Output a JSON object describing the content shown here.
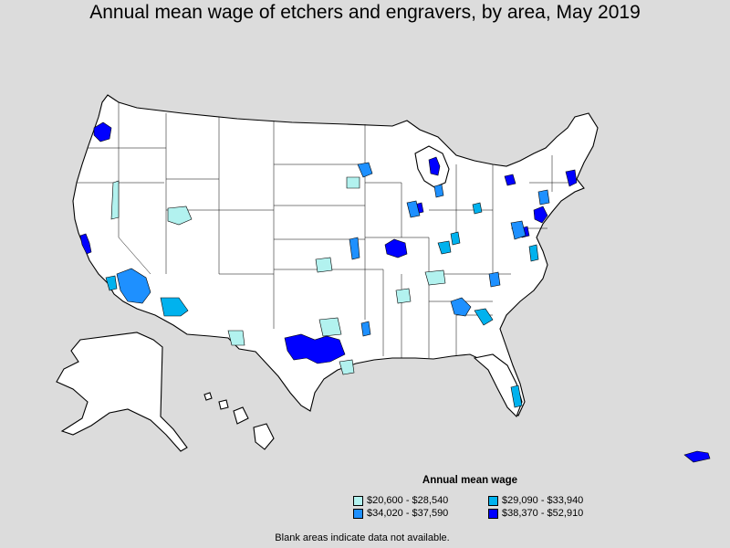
{
  "title": "Annual mean wage of etchers and engravers, by area, May 2019",
  "legend": {
    "title": "Annual mean wage",
    "items": [
      {
        "label": "$20,600 - $28,540",
        "color": "#b2f2ef"
      },
      {
        "label": "$29,090 - $33,940",
        "color": "#00b2ee"
      },
      {
        "label": "$34,020 - $37,590",
        "color": "#1e90ff"
      },
      {
        "label": "$38,370 - $52,910",
        "color": "#0000ff"
      }
    ]
  },
  "footnote": "Blank areas indicate data not available.",
  "colors": {
    "background": "#dcdcdc",
    "no_data": "#ffffff",
    "border": "#000000"
  }
}
